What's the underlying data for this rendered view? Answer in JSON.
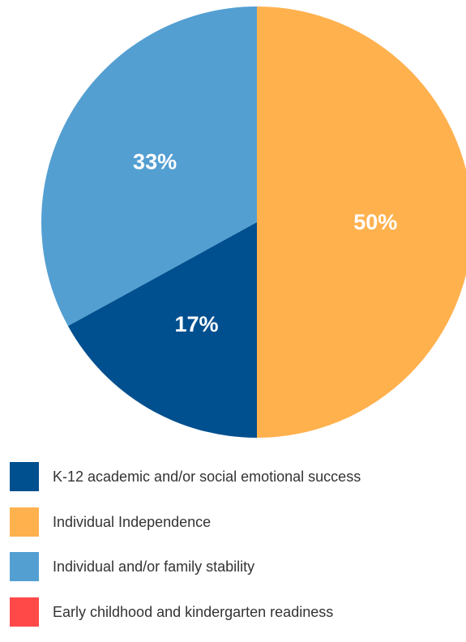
{
  "chart_data": {
    "type": "pie",
    "slices": [
      {
        "name": "Individual Independence",
        "value": 50,
        "label": "50%",
        "color": "#FFB14E"
      },
      {
        "name": "K-12 academic and/or social emotional success",
        "value": 17,
        "label": "17%",
        "color": "#004F8F"
      },
      {
        "name": "Individual and/or family stability",
        "value": 33,
        "label": "33%",
        "color": "#539FD2"
      }
    ],
    "legend": [
      {
        "label": "K-12 academic and/or social emotional success",
        "color": "#004F8F"
      },
      {
        "label": "Individual Independence",
        "color": "#FFB14E"
      },
      {
        "label": "Individual and/or family stability",
        "color": "#539FD2"
      },
      {
        "label": "Early childhood and kindergarten readiness",
        "color": "#FF4949"
      }
    ],
    "legend_placement": "bottom"
  }
}
